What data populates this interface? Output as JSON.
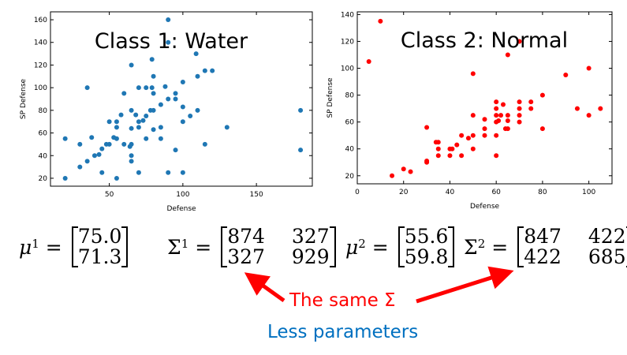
{
  "chart_data": [
    {
      "type": "scatter",
      "title": "Class 1: Water",
      "xlabel": "Defense",
      "ylabel": "SP Defense",
      "xlim": [
        10,
        188
      ],
      "ylim": [
        13,
        167
      ],
      "xticks": [
        50,
        100,
        150
      ],
      "yticks": [
        20,
        40,
        60,
        80,
        100,
        120,
        140,
        160
      ],
      "color": "#1f77b4",
      "grid": false,
      "points": [
        [
          20,
          55
        ],
        [
          20,
          20
        ],
        [
          30,
          50
        ],
        [
          30,
          30
        ],
        [
          35,
          100
        ],
        [
          35,
          35
        ],
        [
          38,
          56
        ],
        [
          40,
          40
        ],
        [
          43,
          41
        ],
        [
          45,
          46
        ],
        [
          45,
          25
        ],
        [
          48,
          50
        ],
        [
          50,
          50
        ],
        [
          50,
          70
        ],
        [
          53,
          56
        ],
        [
          55,
          70
        ],
        [
          55,
          65
        ],
        [
          55,
          55
        ],
        [
          55,
          20
        ],
        [
          58,
          76
        ],
        [
          60,
          95
        ],
        [
          60,
          50
        ],
        [
          64,
          48
        ],
        [
          65,
          120
        ],
        [
          65,
          80
        ],
        [
          65,
          64
        ],
        [
          65,
          50
        ],
        [
          65,
          40
        ],
        [
          65,
          35
        ],
        [
          68,
          76
        ],
        [
          70,
          100
        ],
        [
          70,
          70
        ],
        [
          70,
          65
        ],
        [
          70,
          25
        ],
        [
          73,
          71
        ],
        [
          75,
          100
        ],
        [
          75,
          75
        ],
        [
          75,
          55
        ],
        [
          78,
          80
        ],
        [
          79,
          100
        ],
        [
          79,
          125
        ],
        [
          80,
          110
        ],
        [
          80,
          95
        ],
        [
          80,
          80
        ],
        [
          80,
          63
        ],
        [
          85,
          85
        ],
        [
          85,
          65
        ],
        [
          85,
          55
        ],
        [
          88,
          101
        ],
        [
          90,
          160
        ],
        [
          90,
          140
        ],
        [
          90,
          90
        ],
        [
          90,
          25
        ],
        [
          95,
          95
        ],
        [
          95,
          90
        ],
        [
          95,
          45
        ],
        [
          100,
          105
        ],
        [
          100,
          83
        ],
        [
          100,
          70
        ],
        [
          100,
          25
        ],
        [
          105,
          75
        ],
        [
          109,
          130
        ],
        [
          110,
          110
        ],
        [
          110,
          80
        ],
        [
          115,
          115
        ],
        [
          115,
          50
        ],
        [
          120,
          115
        ],
        [
          130,
          65
        ],
        [
          180,
          80
        ],
        [
          180,
          45
        ]
      ]
    },
    {
      "type": "scatter",
      "title": "Class 2: Normal",
      "xlabel": "Defense",
      "ylabel": "SP Defense",
      "xlim": [
        0,
        110
      ],
      "ylim": [
        14,
        142
      ],
      "xticks": [
        0,
        20,
        40,
        60,
        80,
        100
      ],
      "yticks": [
        20,
        40,
        60,
        80,
        100,
        120,
        140
      ],
      "color": "#ff0000",
      "grid": false,
      "points": [
        [
          5,
          105
        ],
        [
          10,
          135
        ],
        [
          15,
          20
        ],
        [
          20,
          25
        ],
        [
          23,
          23
        ],
        [
          30,
          56
        ],
        [
          30,
          31
        ],
        [
          30,
          30
        ],
        [
          34,
          45
        ],
        [
          35,
          45
        ],
        [
          35,
          40
        ],
        [
          35,
          35
        ],
        [
          40,
          40
        ],
        [
          40,
          35
        ],
        [
          41,
          40
        ],
        [
          43,
          43
        ],
        [
          45,
          50
        ],
        [
          45,
          35
        ],
        [
          48,
          48
        ],
        [
          50,
          96
        ],
        [
          50,
          65
        ],
        [
          50,
          50
        ],
        [
          50,
          40
        ],
        [
          55,
          62
        ],
        [
          55,
          55
        ],
        [
          55,
          50
        ],
        [
          60,
          75
        ],
        [
          60,
          70
        ],
        [
          60,
          65
        ],
        [
          60,
          60
        ],
        [
          60,
          50
        ],
        [
          60,
          35
        ],
        [
          61,
          61
        ],
        [
          62,
          65
        ],
        [
          63,
          73
        ],
        [
          64,
          55
        ],
        [
          65,
          110
        ],
        [
          65,
          65
        ],
        [
          65,
          61
        ],
        [
          65,
          55
        ],
        [
          70,
          120
        ],
        [
          70,
          75
        ],
        [
          70,
          70
        ],
        [
          70,
          65
        ],
        [
          70,
          60
        ],
        [
          75,
          75
        ],
        [
          75,
          70
        ],
        [
          80,
          80
        ],
        [
          80,
          55
        ],
        [
          90,
          95
        ],
        [
          95,
          70
        ],
        [
          100,
          100
        ],
        [
          100,
          65
        ],
        [
          105,
          70
        ]
      ]
    }
  ],
  "formulas": {
    "mu1": {
      "symbol": "μ",
      "sup": "1",
      "equals": "=",
      "values": [
        "75.0",
        "71.3"
      ]
    },
    "sigma1": {
      "symbol": "Σ",
      "sup": "1",
      "equals": "=",
      "values": [
        "874",
        "327",
        "327",
        "929"
      ]
    },
    "mu2": {
      "symbol": "μ",
      "sup": "2",
      "equals": "=",
      "values": [
        "55.6",
        "59.8"
      ]
    },
    "sigma2": {
      "symbol": "Σ",
      "sup": "2",
      "equals": "=",
      "values": [
        "847",
        "422",
        "422",
        "685"
      ]
    }
  },
  "notes": {
    "same_sigma": "The same Σ",
    "less_params": "Less parameters",
    "red": "#ff0000",
    "blue": "#0070c0"
  }
}
